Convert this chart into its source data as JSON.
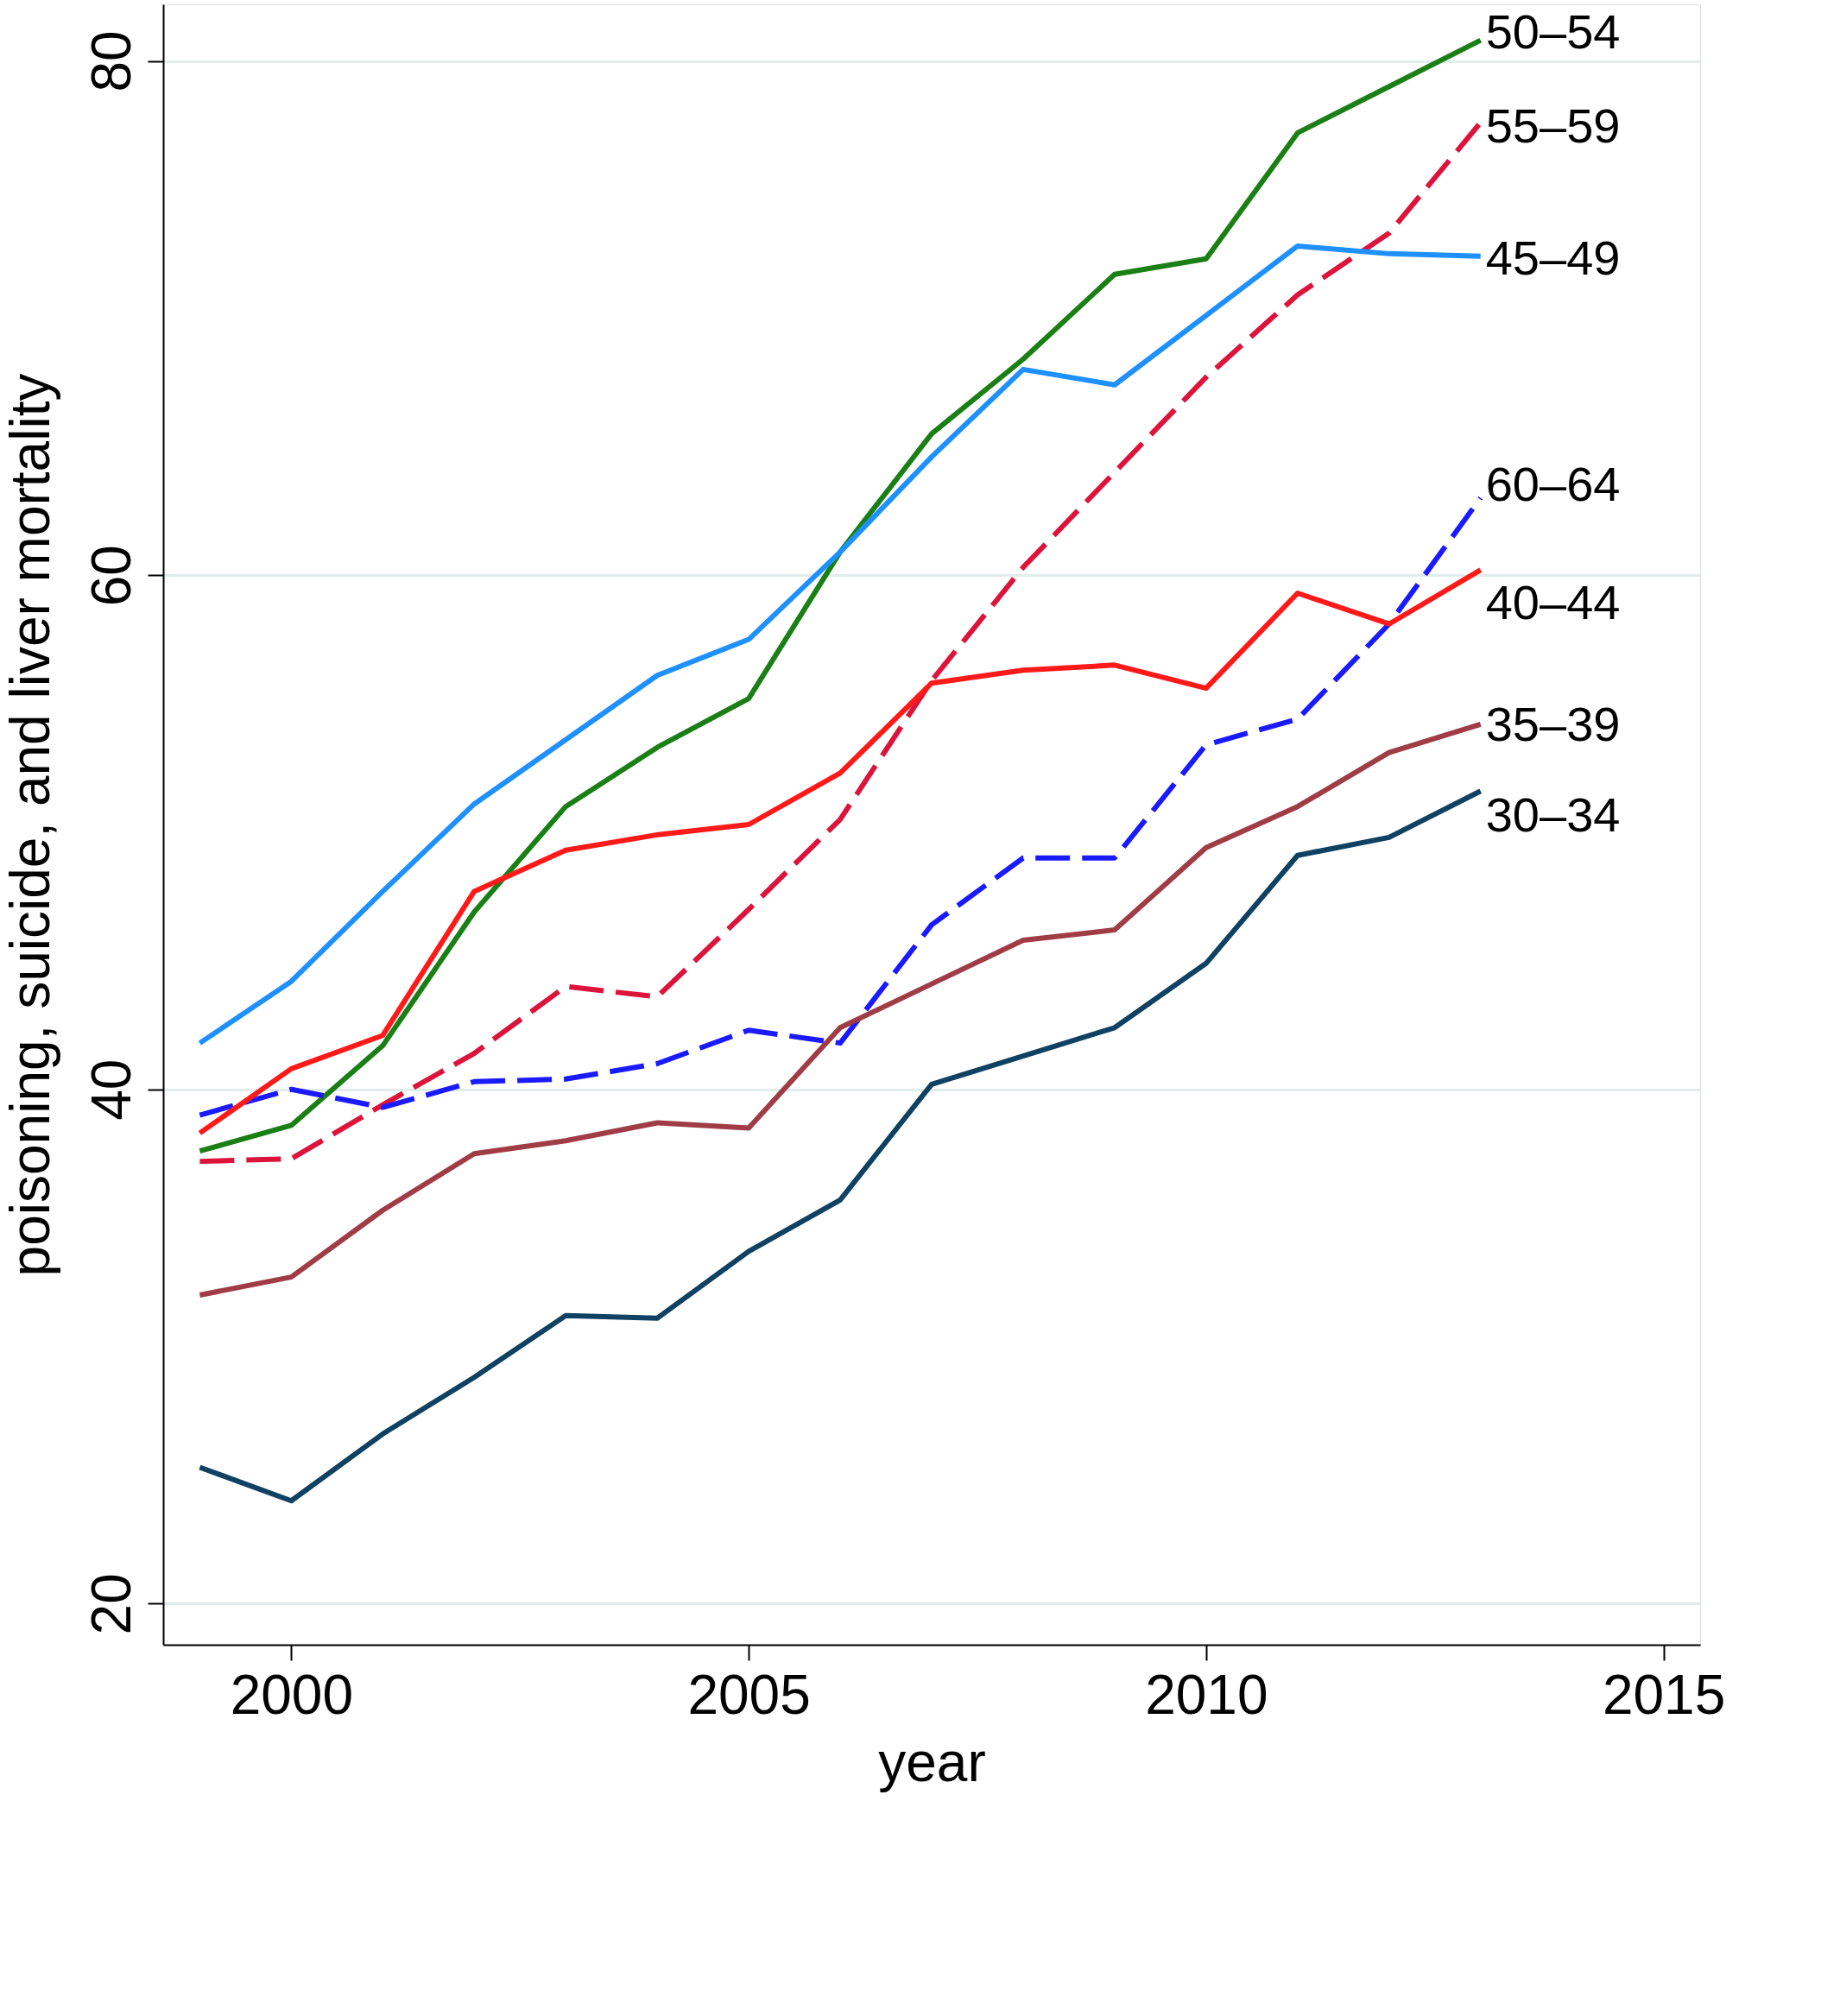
{
  "chart_data": {
    "type": "line",
    "xlabel": "year",
    "ylabel": "poisoning, suicide, and liver mortality",
    "x": [
      1999,
      2000,
      2001,
      2002,
      2003,
      2004,
      2005,
      2006,
      2007,
      2008,
      2009,
      2010,
      2011,
      2012,
      2013
    ],
    "xlim": [
      1998.6,
      2015.4
    ],
    "xticks": [
      2000,
      2005,
      2010,
      2015
    ],
    "ylim": [
      18.4,
      82.2
    ],
    "yticks": [
      20,
      40,
      60,
      80
    ],
    "grid": "y",
    "marker": "none",
    "series": [
      {
        "name": "50–54",
        "color": "#1a7f14",
        "line_style": "solid",
        "values": [
          37.6,
          38.6,
          41.7,
          46.9,
          51.0,
          53.3,
          55.2,
          60.9,
          65.5,
          68.4,
          71.7,
          72.3,
          77.2,
          79.0,
          80.8
        ]
      },
      {
        "name": "55–59",
        "color": "#dc143c",
        "line_style": "dashed",
        "values": [
          37.2,
          37.3,
          39.4,
          41.4,
          44.0,
          43.6,
          47.0,
          50.5,
          55.9,
          60.3,
          64.0,
          67.7,
          70.9,
          73.3,
          77.6
        ]
      },
      {
        "name": "45–49",
        "color": "#1e90ff",
        "line_style": "solid",
        "values": [
          41.8,
          44.2,
          47.7,
          51.1,
          53.6,
          56.1,
          57.5,
          60.9,
          64.6,
          68.0,
          67.4,
          70.1,
          72.8,
          72.5,
          72.4
        ]
      },
      {
        "name": "60–64",
        "color": "#1a1aff",
        "line_style": "dashed",
        "values": [
          39.0,
          40.0,
          39.3,
          40.3,
          40.4,
          41.0,
          42.3,
          41.8,
          46.4,
          49.0,
          49.0,
          53.4,
          54.4,
          58.1,
          63.0
        ]
      },
      {
        "name": "40–44",
        "color": "#ff1a1a",
        "line_style": "solid",
        "values": [
          38.3,
          40.8,
          42.1,
          47.7,
          49.3,
          49.9,
          50.3,
          52.3,
          55.8,
          56.3,
          56.5,
          55.6,
          59.3,
          58.1,
          60.2
        ]
      },
      {
        "name": "35–39",
        "color": "#a03c46",
        "line_style": "solid",
        "values": [
          32.0,
          32.7,
          35.3,
          37.5,
          38.0,
          38.7,
          38.5,
          42.4,
          44.1,
          45.8,
          46.2,
          49.4,
          51.0,
          53.1,
          54.2
        ]
      },
      {
        "name": "30–34",
        "color": "#0f4163",
        "line_style": "solid",
        "values": [
          25.3,
          24.0,
          26.6,
          28.8,
          31.2,
          31.1,
          33.7,
          35.7,
          40.2,
          41.3,
          42.4,
          44.9,
          49.1,
          49.8,
          51.6
        ]
      }
    ]
  }
}
